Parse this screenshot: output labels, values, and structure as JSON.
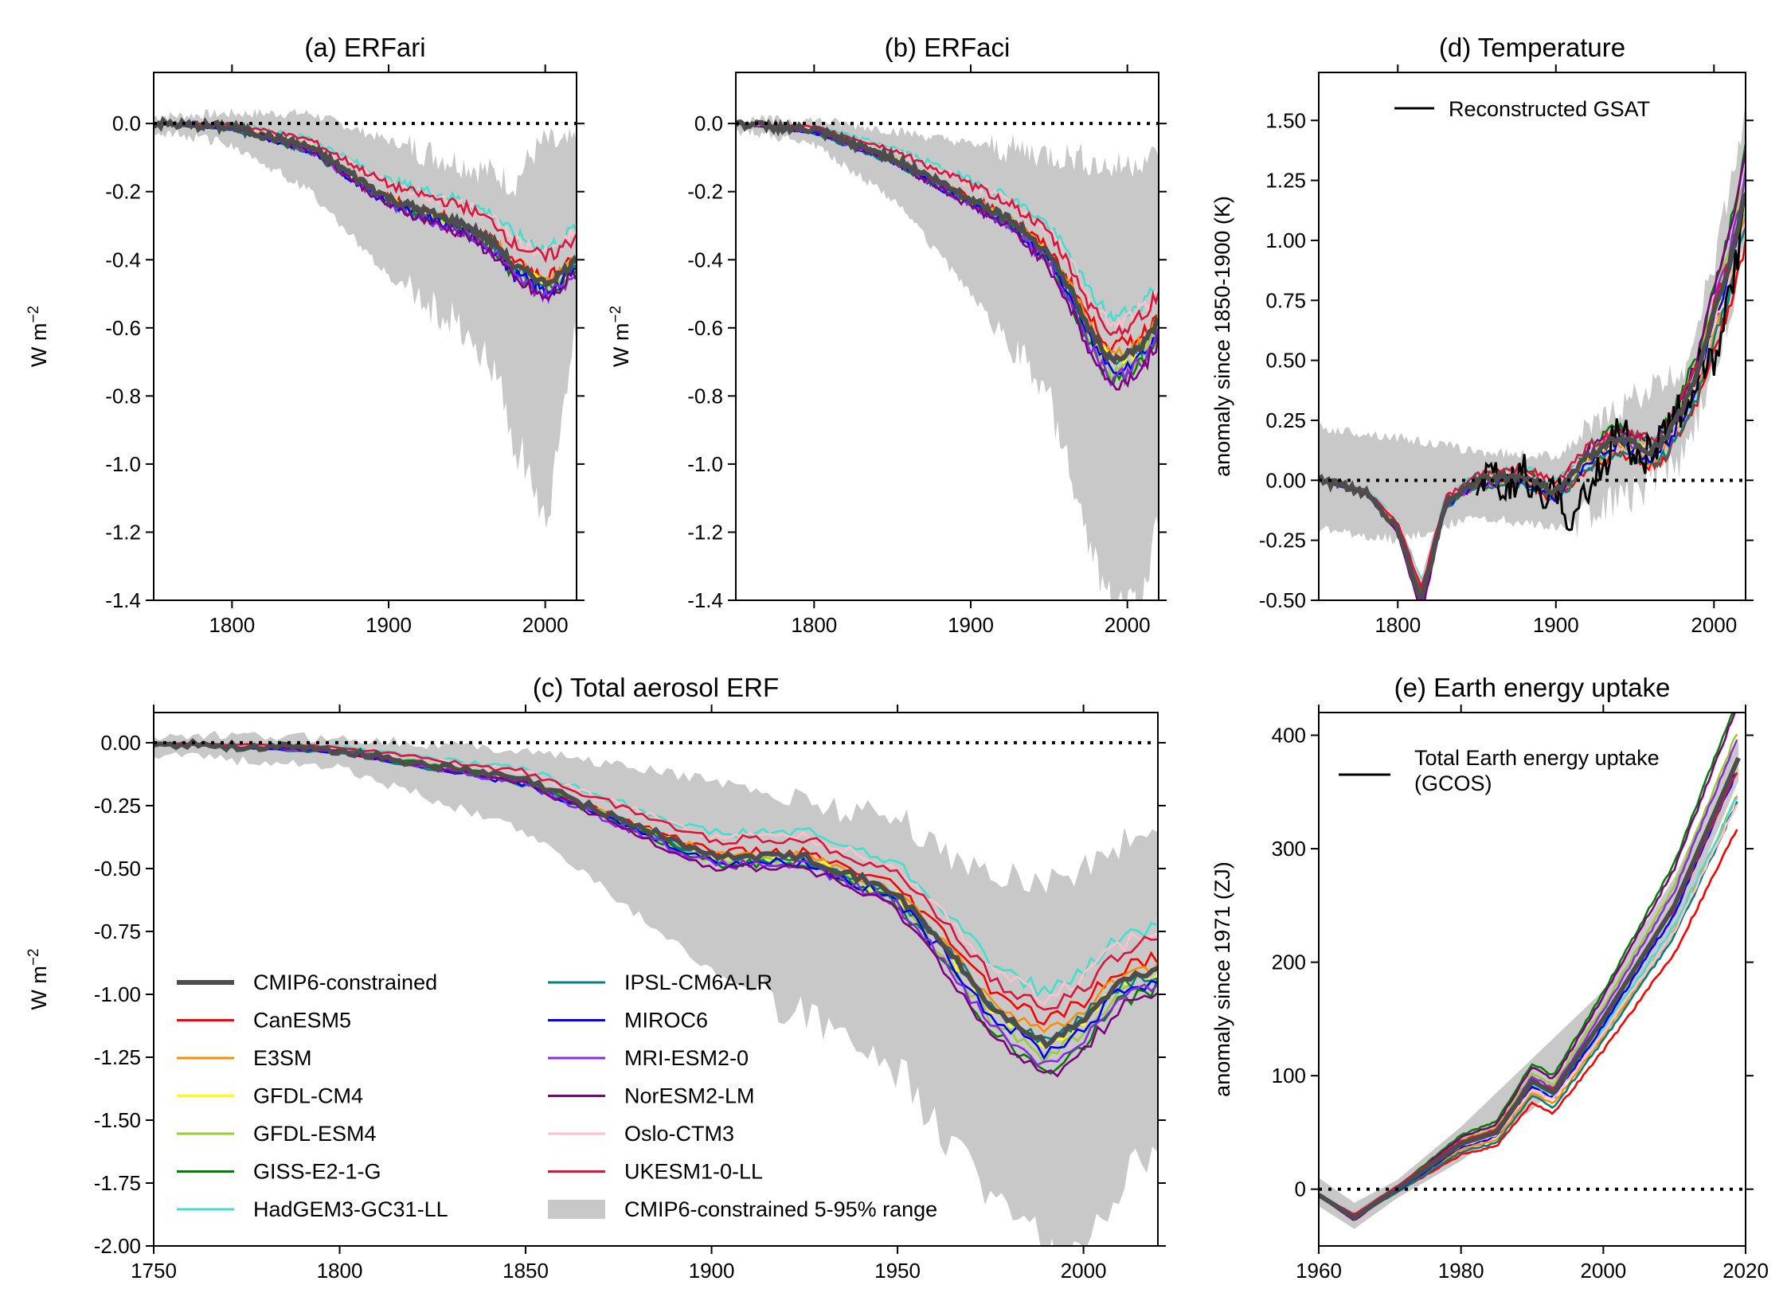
{
  "colors": {
    "CanESM5": "#ff0000",
    "E3SM": "#ff8c00",
    "GFDL-CM4": "#ffff00",
    "GFDL-ESM4": "#9acd32",
    "GISS-E2-1-G": "#008000",
    "HadGEM3-GC31-LL": "#40e0d0",
    "IPSL-CM6A-LR": "#008080",
    "MIROC6": "#0000ff",
    "MRI-ESM2-0": "#8a2be2",
    "NorESM2-LM": "#800080",
    "Oslo-CTM3": "#ffc0cb",
    "UKESM1-0-LL": "#dc143c",
    "CMIP6-constrained": "#4d4d4d",
    "range": "#c8c8c8",
    "observations": "#000000"
  },
  "models": [
    "CanESM5",
    "E3SM",
    "GFDL-CM4",
    "GFDL-ESM4",
    "GISS-E2-1-G",
    "HadGEM3-GC31-LL",
    "IPSL-CM6A-LR",
    "MIROC6",
    "MRI-ESM2-0",
    "NorESM2-LM",
    "Oslo-CTM3",
    "UKESM1-0-LL"
  ],
  "legend_c": {
    "constrained": "CMIP6-constrained",
    "range": "CMIP6-constrained 5-95% range"
  },
  "chart_data": [
    {
      "id": "a",
      "type": "line",
      "title": "(a) ERFari",
      "ylabel": "W m",
      "ylabel_sup": "−2",
      "xlim": [
        1750,
        2020
      ],
      "ylim": [
        -1.4,
        0.15
      ],
      "xticks": [
        "1800",
        "1900",
        "2000"
      ],
      "yticks": [
        "0.0",
        "-0.2",
        "-0.4",
        "-0.6",
        "-0.8",
        "-1.0",
        "-1.2",
        "-1.4"
      ],
      "zero_line": true,
      "central_x": [
        1750,
        1800,
        1850,
        1900,
        1950,
        1970,
        1980,
        1990,
        2000,
        2010,
        2020
      ],
      "central_y": [
        0.0,
        -0.01,
        -0.07,
        -0.22,
        -0.3,
        -0.36,
        -0.42,
        -0.44,
        -0.47,
        -0.44,
        -0.4
      ],
      "range_x": [
        1750,
        1800,
        1850,
        1900,
        1950,
        1970,
        1980,
        1990,
        2000,
        2010,
        2020
      ],
      "range_low": [
        -0.02,
        -0.06,
        -0.2,
        -0.45,
        -0.6,
        -0.75,
        -0.95,
        -1.0,
        -1.2,
        -0.9,
        -0.6
      ],
      "range_high": [
        0.02,
        0.03,
        0.03,
        -0.05,
        -0.12,
        -0.15,
        -0.18,
        -0.1,
        -0.05,
        -0.07,
        -0.05
      ]
    },
    {
      "id": "b",
      "type": "line",
      "title": "(b) ERFaci",
      "ylabel": "W m",
      "ylabel_sup": "−2",
      "xlim": [
        1750,
        2020
      ],
      "ylim": [
        -1.4,
        0.15
      ],
      "xticks": [
        "1800",
        "1900",
        "2000"
      ],
      "yticks": [
        "0.0",
        "-0.2",
        "-0.4",
        "-0.6",
        "-0.8",
        "-1.0",
        "-1.2",
        "-1.4"
      ],
      "zero_line": true,
      "central_x": [
        1750,
        1800,
        1850,
        1900,
        1925,
        1950,
        1965,
        1975,
        1990,
        2000,
        2010,
        2020
      ],
      "central_y": [
        0.0,
        -0.02,
        -0.1,
        -0.22,
        -0.28,
        -0.38,
        -0.5,
        -0.6,
        -0.7,
        -0.68,
        -0.65,
        -0.58
      ],
      "range_x": [
        1750,
        1800,
        1850,
        1900,
        1950,
        1970,
        1980,
        1990,
        2000,
        2010,
        2020
      ],
      "range_low": [
        -0.02,
        -0.06,
        -0.22,
        -0.5,
        -0.8,
        -1.15,
        -1.3,
        -1.4,
        -1.4,
        -1.4,
        -1.15
      ],
      "range_high": [
        0.01,
        0.01,
        -0.02,
        -0.06,
        -0.09,
        -0.1,
        -0.12,
        -0.13,
        -0.12,
        -0.1,
        -0.1
      ]
    },
    {
      "id": "d",
      "type": "line",
      "title": "(d) Temperature",
      "ylabel": "anomaly since 1850-1900 (K)",
      "xlim": [
        1750,
        2020
      ],
      "ylim": [
        -0.5,
        1.7
      ],
      "xticks": [
        "1800",
        "1900",
        "2000"
      ],
      "yticks": [
        "1.50",
        "1.25",
        "1.00",
        "0.75",
        "0.50",
        "0.25",
        "0.00",
        "-0.25",
        "-0.50"
      ],
      "zero_line": true,
      "legend": "Reconstructed GSAT",
      "central_x": [
        1750,
        1780,
        1800,
        1815,
        1830,
        1850,
        1880,
        1900,
        1920,
        1940,
        1960,
        1970,
        1980,
        1990,
        2000,
        2010,
        2020
      ],
      "central_y": [
        0.0,
        -0.05,
        -0.2,
        -0.5,
        -0.1,
        0.0,
        0.02,
        -0.05,
        0.1,
        0.18,
        0.12,
        0.18,
        0.3,
        0.45,
        0.7,
        0.9,
        1.2
      ],
      "range_x": [
        1750,
        1800,
        1850,
        1900,
        1950,
        1980,
        2000,
        2020
      ],
      "range_low": [
        -0.2,
        -0.25,
        -0.15,
        -0.2,
        -0.05,
        0.1,
        0.45,
        0.95
      ],
      "range_high": [
        0.22,
        0.18,
        0.12,
        0.1,
        0.35,
        0.45,
        0.9,
        1.55
      ],
      "obs_x": [
        1850,
        1860,
        1870,
        1880,
        1890,
        1900,
        1910,
        1920,
        1930,
        1940,
        1950,
        1960,
        1970,
        1980,
        1990,
        2000,
        2010,
        2020
      ],
      "obs_y": [
        -0.02,
        0.0,
        -0.05,
        0.05,
        -0.1,
        -0.05,
        -0.15,
        -0.05,
        0.05,
        0.25,
        0.1,
        0.12,
        0.2,
        0.3,
        0.45,
        0.5,
        0.75,
        1.15
      ]
    },
    {
      "id": "c",
      "type": "line",
      "title": "(c) Total aerosol ERF",
      "ylabel": "W m",
      "ylabel_sup": "−2",
      "xlim": [
        1750,
        2020
      ],
      "ylim": [
        -2.0,
        0.12
      ],
      "xticks": [
        "1750",
        "1800",
        "1850",
        "1900",
        "1950",
        "2000"
      ],
      "yticks": [
        "0.00",
        "-0.25",
        "-0.50",
        "-0.75",
        "-1.00",
        "-1.25",
        "-1.50",
        "-1.75",
        "-2.00"
      ],
      "zero_line": true,
      "central_x": [
        1750,
        1800,
        1850,
        1875,
        1900,
        1925,
        1950,
        1965,
        1975,
        1990,
        2000,
        2010,
        2020
      ],
      "central_y": [
        0.0,
        -0.03,
        -0.15,
        -0.3,
        -0.45,
        -0.45,
        -0.6,
        -0.85,
        -1.05,
        -1.2,
        -1.1,
        -0.95,
        -0.9
      ],
      "range_x": [
        1750,
        1800,
        1850,
        1900,
        1950,
        1970,
        1990,
        2000,
        2010,
        2020
      ],
      "range_low": [
        -0.05,
        -0.1,
        -0.35,
        -0.9,
        -1.3,
        -1.7,
        -2.0,
        -2.0,
        -1.75,
        -1.6
      ],
      "range_high": [
        0.03,
        0.02,
        -0.03,
        -0.15,
        -0.3,
        -0.5,
        -0.55,
        -0.5,
        -0.4,
        -0.35
      ]
    },
    {
      "id": "e",
      "type": "line",
      "title": "(e) Earth energy uptake",
      "ylabel": "anomaly since 1971 (ZJ)",
      "xlim": [
        1960,
        2020
      ],
      "ylim": [
        -50,
        420
      ],
      "xticks": [
        "1960",
        "1980",
        "2000",
        "2020"
      ],
      "yticks": [
        "400",
        "300",
        "200",
        "100",
        "0"
      ],
      "zero_line": true,
      "legend_line1": "Total Earth energy uptake",
      "legend_line2": "(GCOS)",
      "central_x": [
        1960,
        1965,
        1971,
        1980,
        1985,
        1990,
        1993,
        2000,
        2010,
        2019
      ],
      "central_y": [
        -5,
        -25,
        0,
        40,
        50,
        95,
        85,
        150,
        250,
        380
      ],
      "range_x": [
        1960,
        1965,
        1971,
        1980,
        1990,
        2000,
        2010,
        2019
      ],
      "range_low": [
        -15,
        -35,
        -8,
        25,
        70,
        130,
        225,
        360
      ],
      "range_high": [
        10,
        -12,
        8,
        55,
        115,
        175,
        275,
        395
      ]
    }
  ]
}
